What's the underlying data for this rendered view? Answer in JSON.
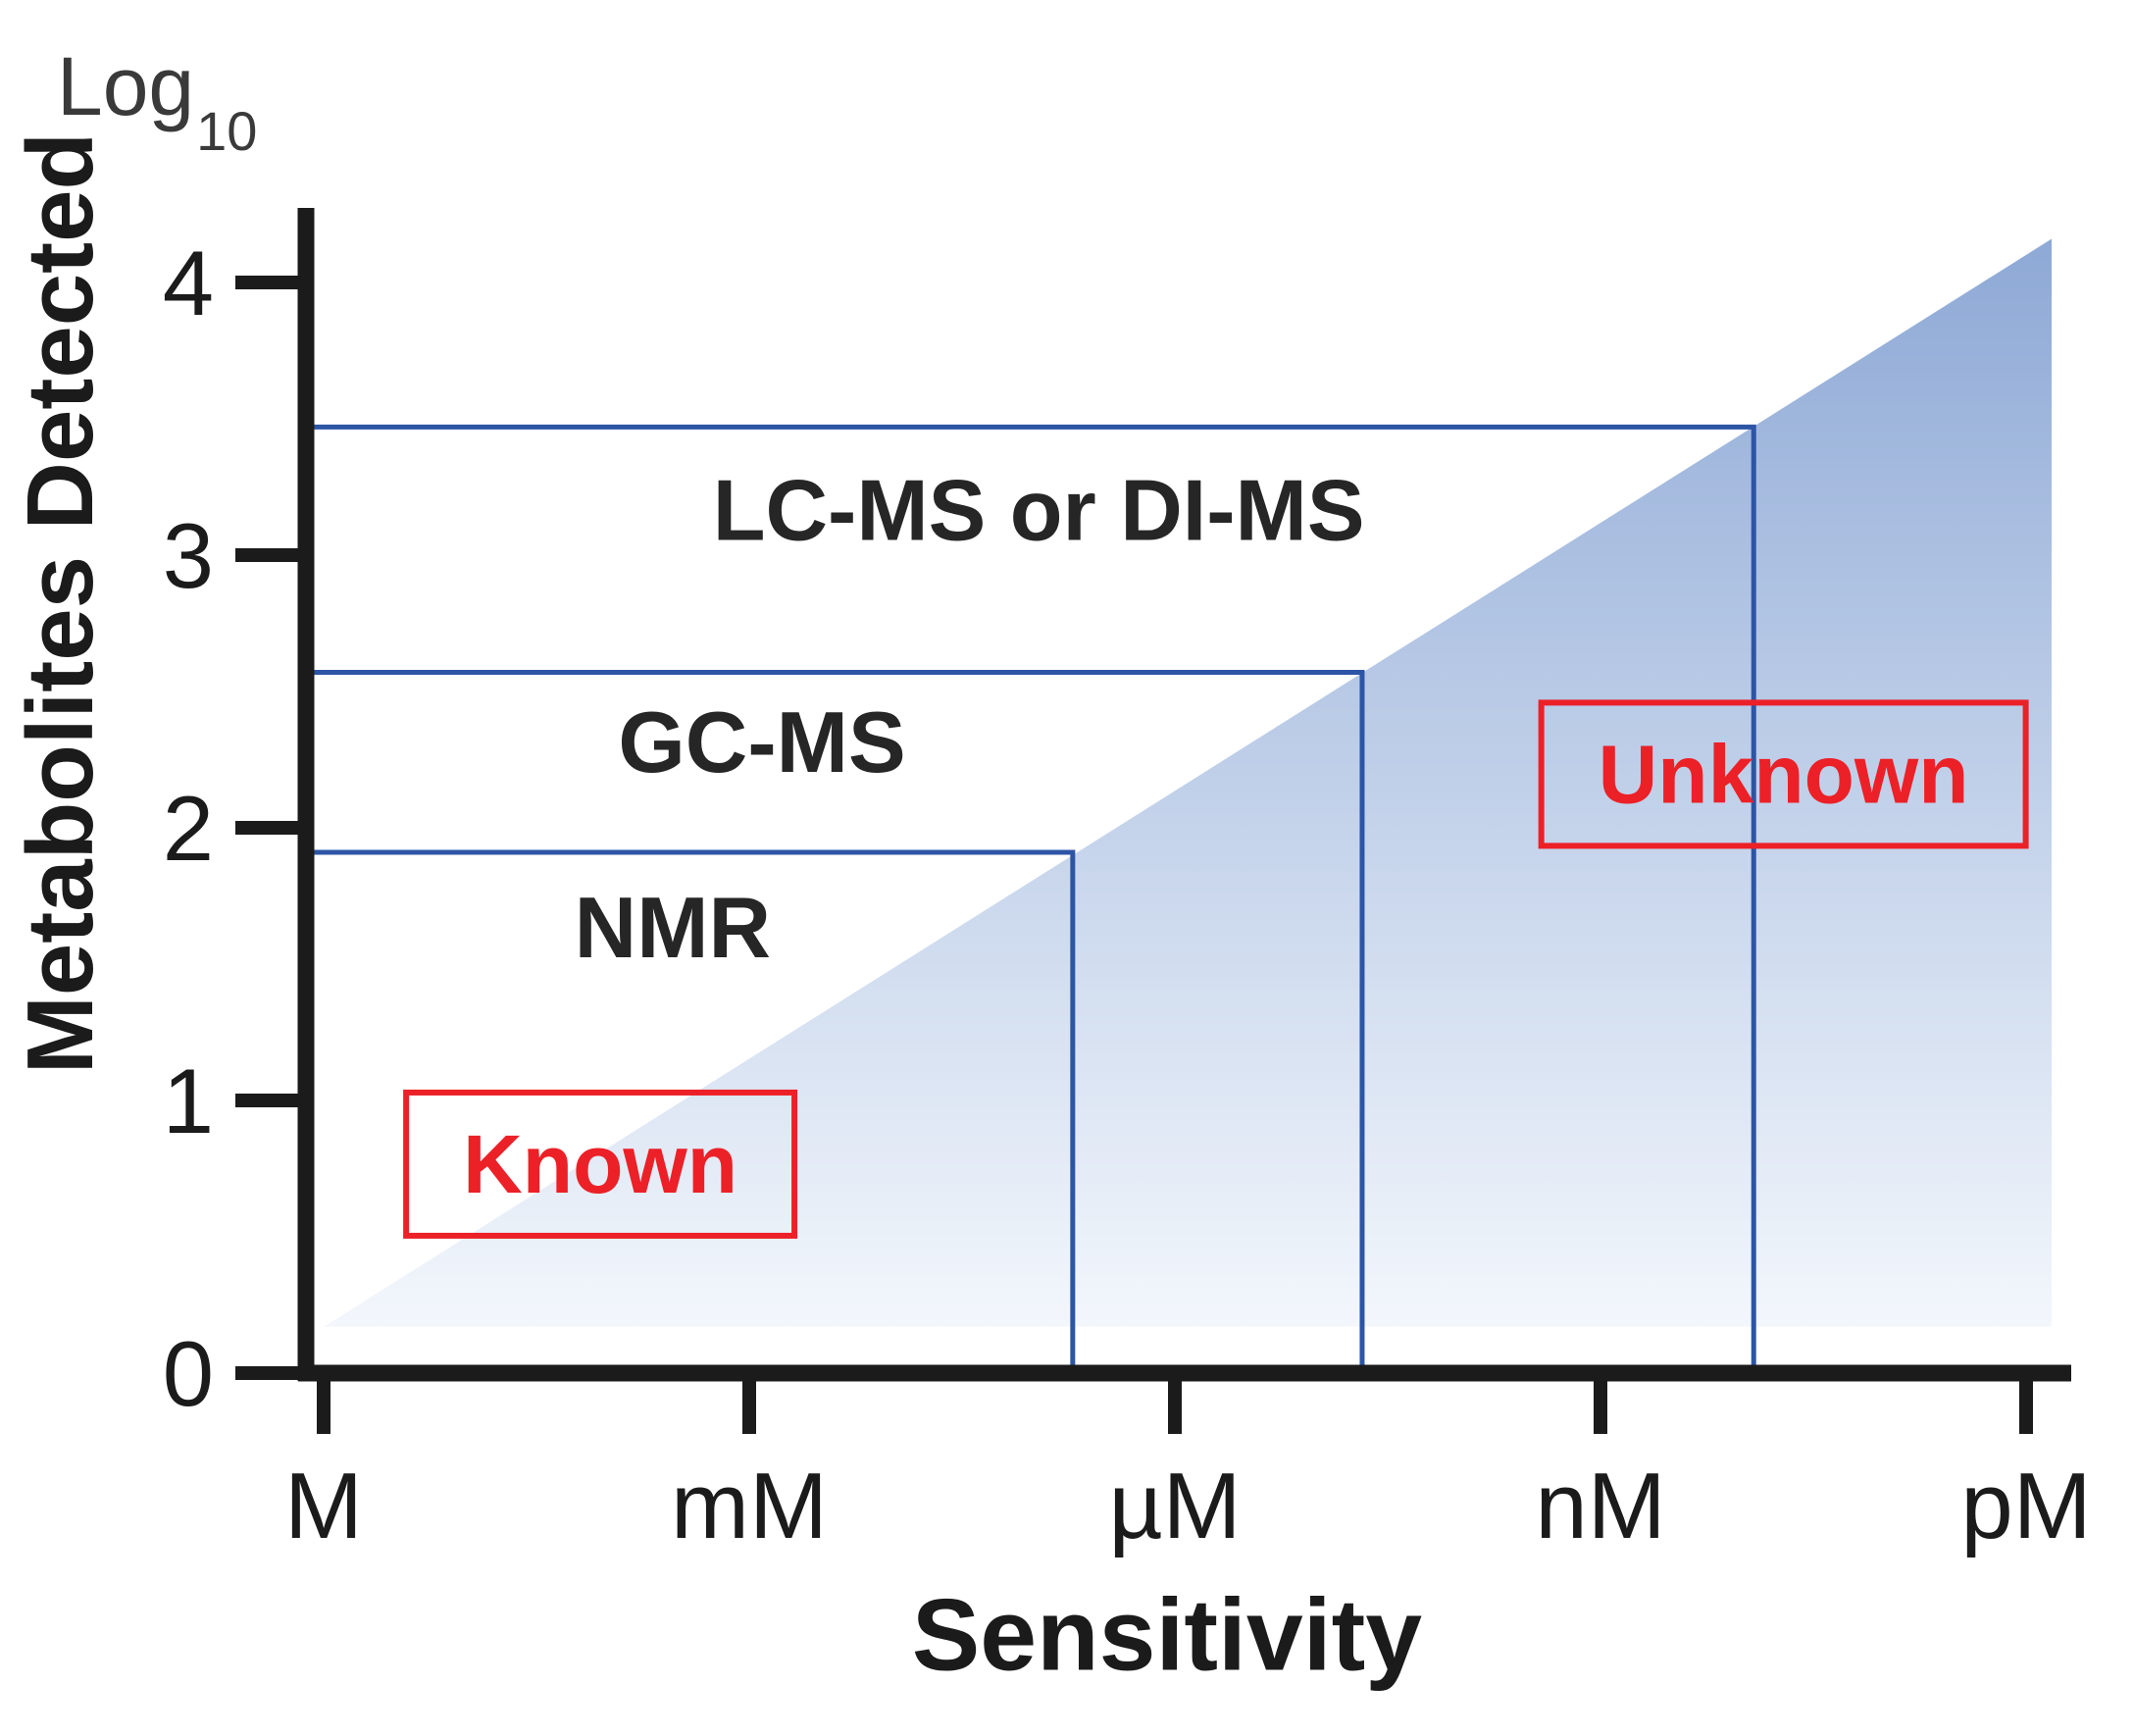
{
  "chart_data": {
    "type": "area",
    "title": "",
    "xlabel": "Sensitivity",
    "ylabel": "Metabolites Detected",
    "y_unit_label": {
      "text": "Log",
      "sub": "10"
    },
    "x_categories": [
      "M",
      "mM",
      "µM",
      "nM",
      "pM"
    ],
    "y_ticks": [
      "0",
      "1",
      "2",
      "3",
      "4"
    ],
    "ylim": [
      0,
      4.3
    ],
    "grid": "off",
    "legend": "none",
    "triangle": {
      "x_left": 0,
      "x_right": 4.06,
      "base_y": 0.17,
      "apex_y": 4.16,
      "meaning": "number of metabolites detectable grows as sensitivity increases from M to pM"
    },
    "techniques": [
      {
        "name": "NMR",
        "log_metabolites_detected": 1.91,
        "sensitivity_reach": 1.76,
        "label_x": 0.82,
        "label_y": 1.64
      },
      {
        "name": "GC-MS",
        "log_metabolites_detected": 2.57,
        "sensitivity_reach": 2.44,
        "label_x": 1.03,
        "label_y": 2.32
      },
      {
        "name": "LC-MS or DI-MS",
        "log_metabolites_detected": 3.47,
        "sensitivity_reach": 3.36,
        "label_x": 1.68,
        "label_y": 3.17
      }
    ],
    "annotations": [
      {
        "text": "Known",
        "x": 0.65,
        "y": 0.77
      },
      {
        "text": "Unknown",
        "x": 3.43,
        "y": 2.2
      }
    ],
    "colors": {
      "triangle_top": "#8ea9d6",
      "triangle_bottom": "#f3f7fc",
      "step_line": "#2d55a5",
      "annotation_red": "#ec2027",
      "axis_black": "#1b1b1b",
      "text_dark": "#262626"
    }
  }
}
